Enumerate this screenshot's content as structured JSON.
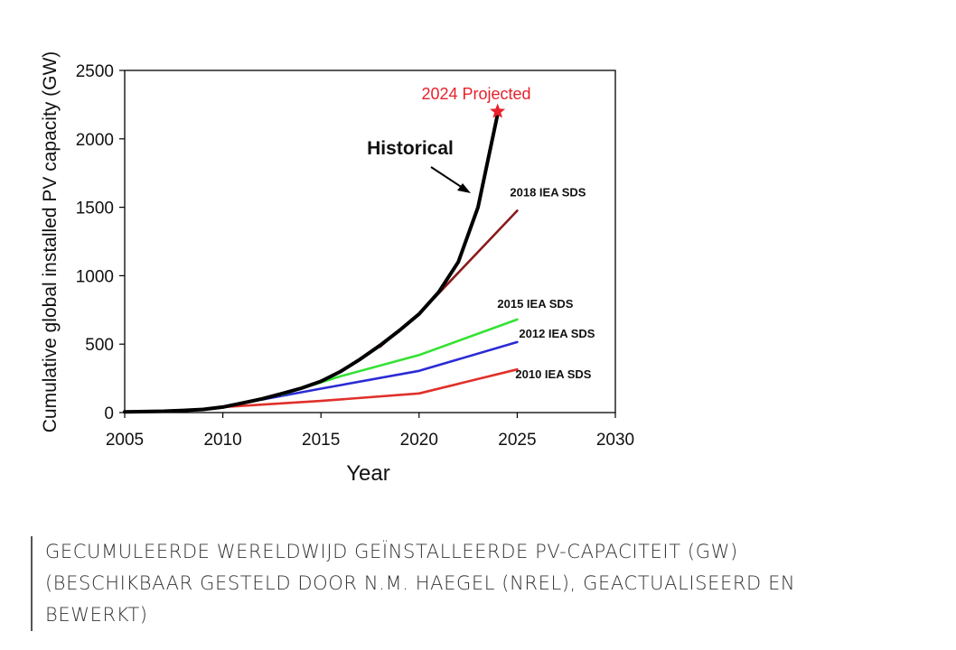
{
  "chart_data": {
    "type": "line",
    "xlabel": "Year",
    "ylabel": "Cumulative global installed PV capacity (GW)",
    "xlim": [
      2005,
      2030
    ],
    "ylim": [
      0,
      2500
    ],
    "x_ticks": [
      "2005",
      "2010",
      "2015",
      "2020",
      "2025",
      "2030"
    ],
    "y_ticks": [
      "0",
      "500",
      "1000",
      "1500",
      "2000",
      "2500"
    ],
    "grid": false,
    "series": [
      {
        "name": "2010 IEA SDS",
        "color": "#e0302a",
        "points": [
          [
            2010,
            40
          ],
          [
            2015,
            85
          ],
          [
            2020,
            140
          ],
          [
            2025,
            315
          ]
        ]
      },
      {
        "name": "2012 IEA SDS",
        "color": "#2b2bd6",
        "points": [
          [
            2012,
            95
          ],
          [
            2015,
            175
          ],
          [
            2020,
            305
          ],
          [
            2025,
            515
          ]
        ]
      },
      {
        "name": "2015 IEA SDS",
        "color": "#33e233",
        "points": [
          [
            2013,
            130
          ],
          [
            2016,
            265
          ],
          [
            2020,
            420
          ],
          [
            2025,
            680
          ]
        ]
      },
      {
        "name": "2018 IEA SDS",
        "color": "#8b1a1a",
        "points": [
          [
            2018,
            480
          ],
          [
            2020,
            720
          ],
          [
            2025,
            1475
          ]
        ]
      },
      {
        "name": "Historical",
        "color": "#000000",
        "points": [
          [
            2005,
            5
          ],
          [
            2006,
            7
          ],
          [
            2007,
            10
          ],
          [
            2008,
            16
          ],
          [
            2009,
            23
          ],
          [
            2010,
            40
          ],
          [
            2011,
            70
          ],
          [
            2012,
            100
          ],
          [
            2013,
            138
          ],
          [
            2014,
            178
          ],
          [
            2015,
            228
          ],
          [
            2016,
            300
          ],
          [
            2017,
            390
          ],
          [
            2018,
            490
          ],
          [
            2019,
            600
          ],
          [
            2020,
            720
          ],
          [
            2021,
            880
          ],
          [
            2022,
            1100
          ],
          [
            2023,
            1500
          ],
          [
            2024,
            2180
          ]
        ]
      }
    ],
    "projected_point": {
      "label": "2024 Projected",
      "x": 2024,
      "y": 2200,
      "color": "#e8202a"
    },
    "annotations": [
      "Historical"
    ]
  },
  "caption": {
    "lines": [
      "GECUMULEERDE WERELDWIJD GEÏNSTALLEERDE PV-CAPACITEIT (GW)",
      "(BESCHIKBAAR GESTELD DOOR N.M. HAEGEL (NREL), GEACTUALISEERD EN",
      "BEWERKT)"
    ]
  }
}
